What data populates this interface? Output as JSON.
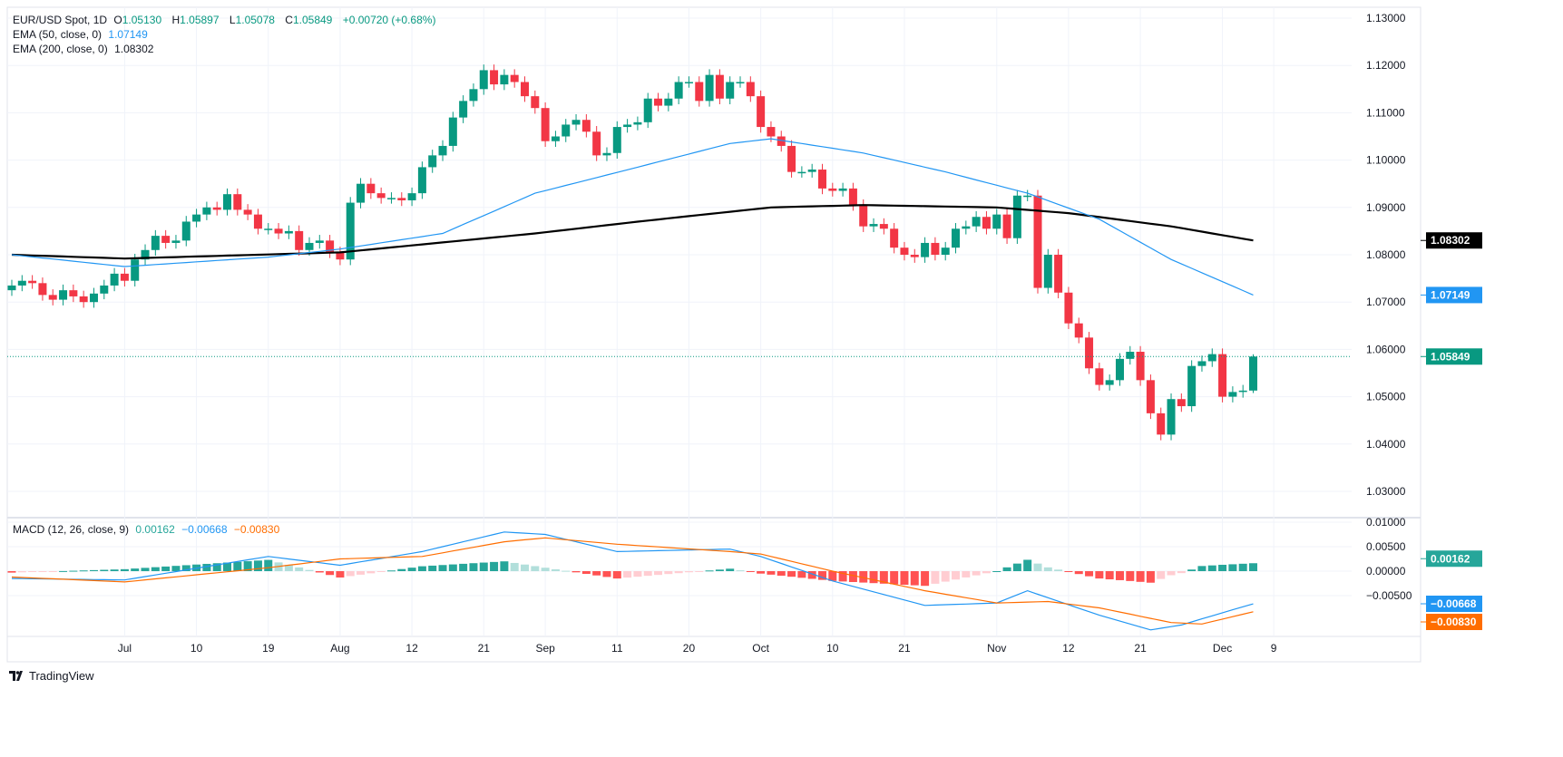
{
  "legend": {
    "symbol": "EUR/USD Spot, 1D",
    "o_label": "O",
    "open": "1.05130",
    "h_label": "H",
    "high": "1.05897",
    "l_label": "L",
    "low": "1.05078",
    "c_label": "C",
    "close": "1.05849",
    "change": "+0.00720 (+0.68%)",
    "ema50_label": "EMA (50, close, 0)",
    "ema50_value": "1.07149",
    "ema200_label": "EMA (200, close, 0)",
    "ema200_value": "1.08302",
    "macd_label": "MACD (12, 26, close, 9)",
    "macd_hist": "0.00162",
    "macd_line": "−0.00668",
    "macd_signal": "−0.00830"
  },
  "brand": "TradingView",
  "colors": {
    "up": "#089981",
    "down": "#F23645",
    "ema50": "#2196F3",
    "ema200": "#000000",
    "signal": "#FF6D00",
    "hist_up_strong": "#26A69A",
    "hist_up_weak": "#B2DFDB",
    "hist_down_strong": "#FF5252",
    "hist_down_weak": "#FFCDD2"
  },
  "chart_data": [
    {
      "type": "candlestick",
      "title": "EUR/USD Spot, 1D",
      "ylim": [
        1.025,
        1.135
      ],
      "y_ticks": [
        "1.13000",
        "1.12000",
        "1.11000",
        "1.10000",
        "1.09000",
        "1.08000",
        "1.07000",
        "1.06000",
        "1.05000",
        "1.04000",
        "1.03000"
      ],
      "x_ticks": [
        {
          "label": "Jul",
          "at": 11
        },
        {
          "label": "10",
          "at": 18
        },
        {
          "label": "19",
          "at": 25
        },
        {
          "label": "Aug",
          "at": 32
        },
        {
          "label": "12",
          "at": 39
        },
        {
          "label": "21",
          "at": 46
        },
        {
          "label": "Sep",
          "at": 52
        },
        {
          "label": "11",
          "at": 59
        },
        {
          "label": "20",
          "at": 66
        },
        {
          "label": "Oct",
          "at": 73
        },
        {
          "label": "10",
          "at": 80
        },
        {
          "label": "21",
          "at": 87
        },
        {
          "label": "Nov",
          "at": 96
        },
        {
          "label": "12",
          "at": 103
        },
        {
          "label": "21",
          "at": 110
        },
        {
          "label": "Dec",
          "at": 118
        },
        {
          "label": "9",
          "at": 123
        }
      ],
      "first_open": 1.0725,
      "closes": [
        1.0735,
        1.0745,
        1.074,
        1.0715,
        1.0705,
        1.0725,
        1.0712,
        1.07,
        1.0718,
        1.0735,
        1.076,
        1.0745,
        1.079,
        1.081,
        1.084,
        1.0825,
        1.083,
        1.087,
        1.0885,
        1.09,
        1.0895,
        1.0928,
        1.0895,
        1.0885,
        1.0855,
        1.0855,
        1.0845,
        1.085,
        1.081,
        1.0825,
        1.083,
        1.0805,
        1.079,
        1.091,
        1.095,
        1.093,
        1.092,
        1.092,
        1.0915,
        1.093,
        1.0985,
        1.101,
        1.103,
        1.109,
        1.1125,
        1.115,
        1.119,
        1.116,
        1.118,
        1.1165,
        1.1135,
        1.111,
        1.104,
        1.105,
        1.1075,
        1.1085,
        1.106,
        1.101,
        1.1015,
        1.107,
        1.1075,
        1.108,
        1.113,
        1.1115,
        1.113,
        1.1165,
        1.1165,
        1.1125,
        1.118,
        1.113,
        1.1165,
        1.1165,
        1.1135,
        1.107,
        1.105,
        1.103,
        1.0975,
        1.0975,
        1.098,
        1.094,
        1.0935,
        1.094,
        1.0905,
        1.086,
        1.0865,
        1.0855,
        1.0815,
        1.08,
        1.0795,
        1.0825,
        1.08,
        1.0815,
        1.0855,
        1.086,
        1.088,
        1.0855,
        1.0885,
        1.0835,
        1.0925,
        1.0925,
        1.073,
        1.08,
        1.072,
        1.0655,
        1.0625,
        1.056,
        1.0525,
        1.0535,
        1.058,
        1.0595,
        1.0535,
        1.0465,
        1.042,
        1.0495,
        1.048,
        1.0565,
        1.0575,
        1.059,
        1.05,
        1.051,
        1.0513,
        1.05849
      ],
      "last_candle": {
        "o": 1.0513,
        "h": 1.05897,
        "l": 1.05078,
        "c": 1.05849
      },
      "series": [
        {
          "name": "EMA (50, close, 0)",
          "points": [
            [
              0,
              1.08
            ],
            [
              11,
              1.0775
            ],
            [
              25,
              1.0795
            ],
            [
              32,
              1.0812
            ],
            [
              42,
              1.0845
            ],
            [
              51,
              1.093
            ],
            [
              61,
              1.0985
            ],
            [
              70,
              1.1035
            ],
            [
              74,
              1.1045
            ],
            [
              83,
              1.1015
            ],
            [
              91,
              1.0975
            ],
            [
              99,
              1.093
            ],
            [
              106,
              1.0875
            ],
            [
              113,
              1.079
            ],
            [
              121,
              1.07149
            ]
          ]
        },
        {
          "name": "EMA (200, close, 0)",
          "points": [
            [
              0,
              1.08
            ],
            [
              11,
              1.0792
            ],
            [
              32,
              1.0805
            ],
            [
              51,
              1.0845
            ],
            [
              61,
              1.087
            ],
            [
              74,
              1.09
            ],
            [
              83,
              1.0905
            ],
            [
              96,
              1.09
            ],
            [
              103,
              1.0888
            ],
            [
              113,
              1.086
            ],
            [
              121,
              1.08302
            ]
          ]
        }
      ],
      "price_tags": {
        "ema200": "1.08302",
        "ema50": "1.07149",
        "last": "1.05849"
      }
    },
    {
      "type": "line",
      "title": "MACD (12, 26, close, 9)",
      "ylim": [
        -0.0135,
        0.0105
      ],
      "y_ticks": [
        "0.01000",
        "0.00500",
        "0.00000",
        "−0.00500"
      ],
      "series": [
        {
          "name": "MACD",
          "points": [
            [
              0,
              -0.0015
            ],
            [
              11,
              -0.0018
            ],
            [
              25,
              0.003
            ],
            [
              32,
              0.0012
            ],
            [
              40,
              0.004
            ],
            [
              48,
              0.008
            ],
            [
              52,
              0.0075
            ],
            [
              59,
              0.004
            ],
            [
              70,
              0.0045
            ],
            [
              73,
              0.003
            ],
            [
              80,
              -0.002
            ],
            [
              89,
              -0.007
            ],
            [
              96,
              -0.0065
            ],
            [
              99,
              -0.004
            ],
            [
              106,
              -0.009
            ],
            [
              111,
              -0.012
            ],
            [
              114,
              -0.011
            ],
            [
              118,
              -0.0085
            ],
            [
              121,
              -0.00668
            ]
          ]
        },
        {
          "name": "Signal",
          "points": [
            [
              0,
              -0.0012
            ],
            [
              11,
              -0.0022
            ],
            [
              25,
              0.0007
            ],
            [
              32,
              0.0025
            ],
            [
              40,
              0.003
            ],
            [
              48,
              0.006
            ],
            [
              52,
              0.0068
            ],
            [
              59,
              0.0055
            ],
            [
              70,
              0.004
            ],
            [
              73,
              0.0035
            ],
            [
              80,
              0.0
            ],
            [
              89,
              -0.004
            ],
            [
              96,
              -0.0065
            ],
            [
              101,
              -0.0062
            ],
            [
              106,
              -0.0075
            ],
            [
              113,
              -0.0105
            ],
            [
              116,
              -0.0108
            ],
            [
              121,
              -0.0083
            ]
          ]
        }
      ],
      "price_tags": {
        "hist": "0.00162",
        "macd": "−0.00668",
        "signal": "−0.00830"
      }
    }
  ]
}
